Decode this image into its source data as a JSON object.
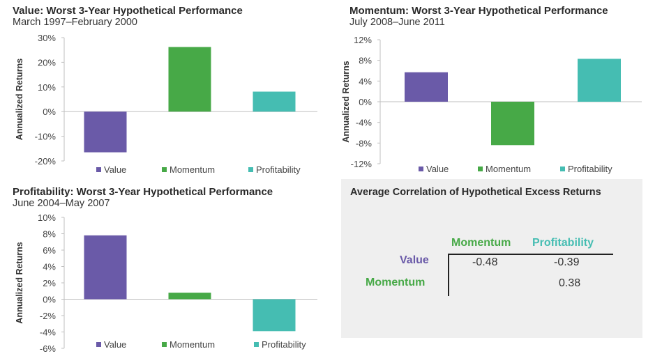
{
  "colors": {
    "value": "#6a5aa8",
    "momentum": "#47a947",
    "profitability": "#45bdb2",
    "axis": "#bfbfbf",
    "text": "#3a3a3a"
  },
  "chart_data": [
    {
      "type": "bar",
      "title": "Value: Worst 3-Year Hypothetical Performance",
      "subtitle": "March 1997–February 2000",
      "ylabel": "Annualized Returns",
      "categories": [
        "Value",
        "Momentum",
        "Profitability"
      ],
      "values": [
        -16.5,
        26.2,
        8.1
      ],
      "ylim": [
        -20,
        30
      ],
      "ticks": [
        30,
        20,
        10,
        0,
        -10,
        -20
      ],
      "tick_labels": [
        "30%",
        "20%",
        "10%",
        "0%",
        "-10%",
        "-20%"
      ],
      "legend_position": "bottom"
    },
    {
      "type": "bar",
      "title": "Momentum: Worst 3-Year Hypothetical Performance",
      "subtitle": "July 2008–June 2011",
      "ylabel": "Annualized Returns",
      "categories": [
        "Value",
        "Momentum",
        "Profitability"
      ],
      "values": [
        5.7,
        -8.4,
        8.3
      ],
      "ylim": [
        -12,
        12
      ],
      "ticks": [
        12,
        8,
        4,
        0,
        -4,
        -8,
        -12
      ],
      "tick_labels": [
        "12%",
        "8%",
        "4%",
        "0%",
        "-4%",
        "-8%",
        "-12%"
      ],
      "legend_position": "bottom"
    },
    {
      "type": "bar",
      "title": "Profitability: Worst 3-Year Hypothetical Performance",
      "subtitle": "June 2004–May 2007",
      "ylabel": "Annualized Returns",
      "categories": [
        "Value",
        "Momentum",
        "Profitability"
      ],
      "values": [
        7.8,
        0.8,
        -3.9
      ],
      "ylim": [
        -6,
        10
      ],
      "ticks": [
        10,
        8,
        6,
        4,
        2,
        0,
        -2,
        -4,
        -6
      ],
      "tick_labels": [
        "10%",
        "8%",
        "6%",
        "4%",
        "2%",
        "0%",
        "-2%",
        "-4%",
        "-6%"
      ],
      "legend_position": "bottom"
    }
  ],
  "correlation": {
    "title": "Average Correlation of Hypothetical  Excess Returns",
    "col_headers": [
      "Momentum",
      "Profitability"
    ],
    "row_headers": [
      "Value",
      "Momentum"
    ],
    "cells": [
      [
        "-0.48",
        "-0.39"
      ],
      [
        "",
        "0.38"
      ]
    ]
  }
}
